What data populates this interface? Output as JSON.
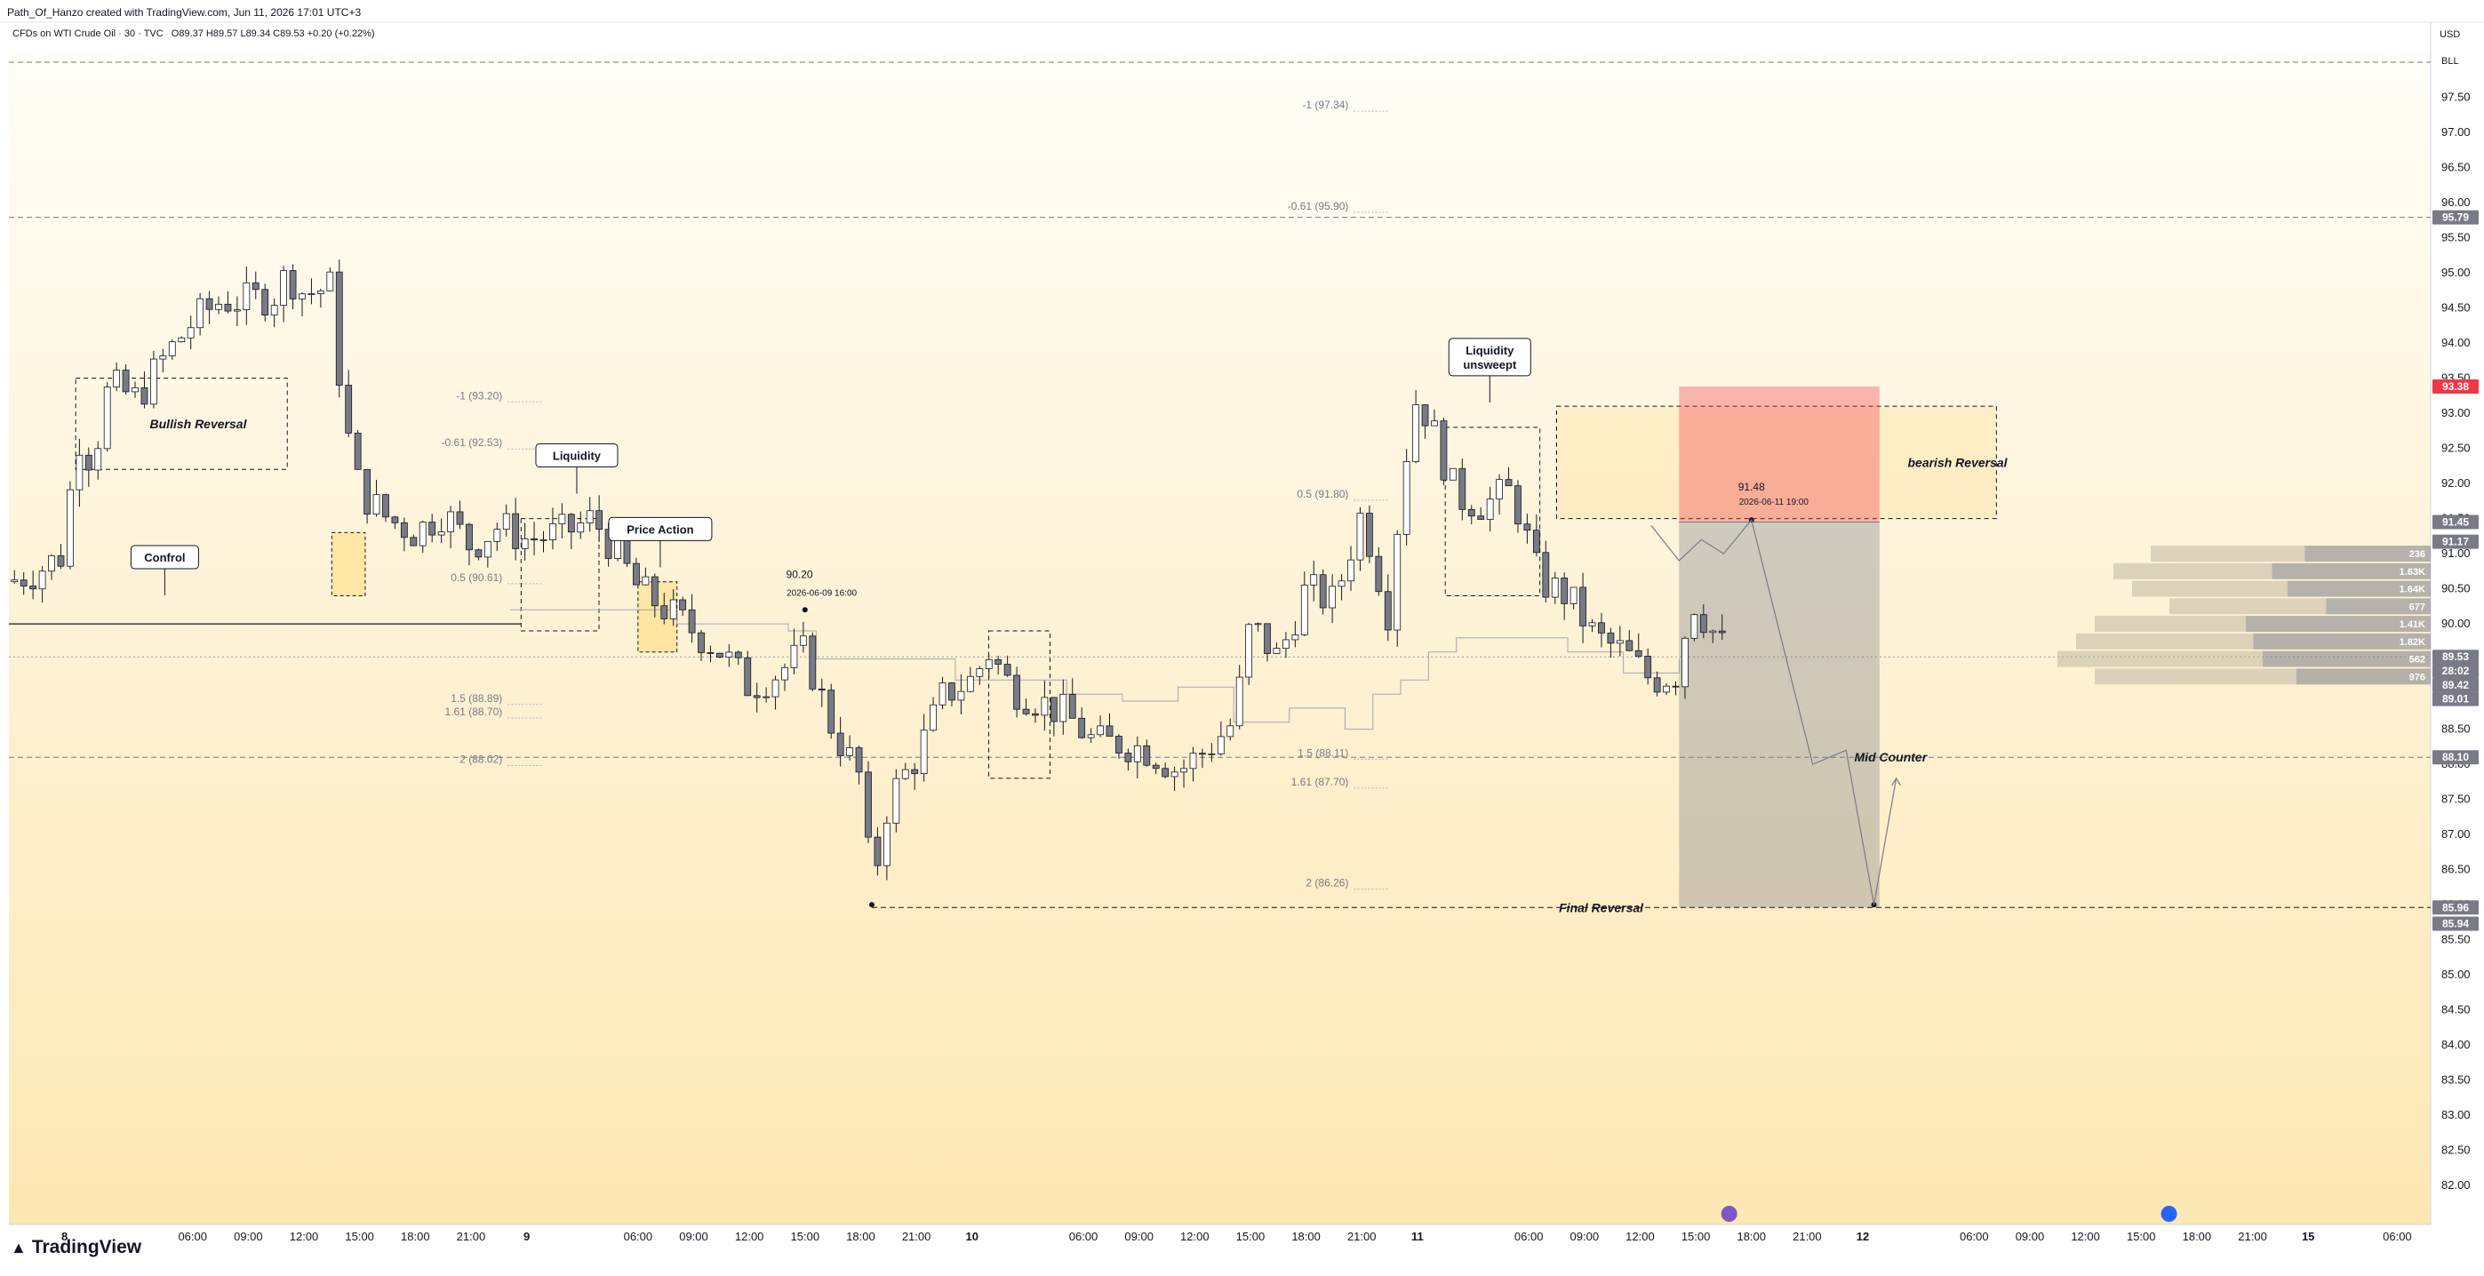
{
  "header": {
    "created_by": "Path_Of_Hanzo created with TradingView.com, Jun 11, 2026 17:01 UTC+3",
    "symbol": "CFDs on WTI Crude Oil · 30 · TVC",
    "ohlc": "O89.37 H89.57 L89.34 C89.53 +0.20 (+0.22%)",
    "currency": "USD",
    "unit": "BLL"
  },
  "brand": "TradingView",
  "chart_data": {
    "type": "candlestick",
    "symbol": "CFDs on WTI Crude Oil",
    "interval": "30",
    "source": "TVC",
    "ylim": [
      81.8,
      98.0
    ],
    "y_ticks": [
      97.5,
      97.0,
      96.5,
      96.0,
      95.5,
      95.0,
      94.5,
      94.0,
      93.5,
      93.0,
      92.5,
      92.0,
      91.5,
      91.0,
      90.5,
      90.0,
      89.5,
      89.0,
      88.5,
      88.0,
      87.5,
      87.0,
      86.5,
      86.0,
      85.5,
      85.0,
      84.5,
      84.0,
      83.5,
      83.0,
      82.5,
      82.0
    ],
    "x_ticks": [
      {
        "t": 1.0,
        "label": "8"
      },
      {
        "t": 3.3,
        "label": "06:00"
      },
      {
        "t": 4.3,
        "label": "09:00"
      },
      {
        "t": 5.3,
        "label": "12:00"
      },
      {
        "t": 6.3,
        "label": "15:00"
      },
      {
        "t": 7.3,
        "label": "18:00"
      },
      {
        "t": 8.3,
        "label": "21:00"
      },
      {
        "t": 9.3,
        "label": "9"
      },
      {
        "t": 11.3,
        "label": "06:00"
      },
      {
        "t": 12.3,
        "label": "09:00"
      },
      {
        "t": 13.3,
        "label": "12:00"
      },
      {
        "t": 14.3,
        "label": "15:00"
      },
      {
        "t": 15.3,
        "label": "18:00"
      },
      {
        "t": 16.3,
        "label": "21:00"
      },
      {
        "t": 17.3,
        "label": "10"
      },
      {
        "t": 19.3,
        "label": "06:00"
      },
      {
        "t": 20.3,
        "label": "09:00"
      },
      {
        "t": 21.3,
        "label": "12:00"
      },
      {
        "t": 22.3,
        "label": "15:00"
      },
      {
        "t": 23.3,
        "label": "18:00"
      },
      {
        "t": 24.3,
        "label": "21:00"
      },
      {
        "t": 25.3,
        "label": "11"
      },
      {
        "t": 27.3,
        "label": "06:00"
      },
      {
        "t": 28.3,
        "label": "09:00"
      },
      {
        "t": 29.3,
        "label": "12:00"
      },
      {
        "t": 30.3,
        "label": "15:00"
      },
      {
        "t": 31.3,
        "label": "18:00"
      },
      {
        "t": 32.3,
        "label": "21:00"
      },
      {
        "t": 33.3,
        "label": "12"
      },
      {
        "t": 35.3,
        "label": "06:00"
      },
      {
        "t": 36.3,
        "label": "09:00"
      },
      {
        "t": 37.3,
        "label": "12:00"
      },
      {
        "t": 38.3,
        "label": "15:00"
      },
      {
        "t": 39.3,
        "label": "18:00"
      },
      {
        "t": 40.3,
        "label": "21:00"
      },
      {
        "t": 41.3,
        "label": "15"
      },
      {
        "t": 42.9,
        "label": "06:00"
      }
    ],
    "price_path": [
      [
        0.0,
        90.6
      ],
      [
        0.5,
        90.75
      ],
      [
        1.0,
        91.0
      ],
      [
        1.2,
        92.75
      ],
      [
        1.5,
        92.3
      ],
      [
        1.8,
        93.4
      ],
      [
        2.3,
        93.2
      ],
      [
        2.8,
        93.8
      ],
      [
        3.3,
        94.3
      ],
      [
        3.8,
        94.6
      ],
      [
        4.3,
        94.6
      ],
      [
        4.8,
        94.7
      ],
      [
        5.0,
        95.0
      ],
      [
        5.3,
        94.7
      ],
      [
        5.8,
        94.8
      ],
      [
        6.0,
        93.0
      ],
      [
        6.3,
        91.9
      ],
      [
        6.8,
        91.5
      ],
      [
        7.3,
        91.3
      ],
      [
        7.8,
        91.6
      ],
      [
        8.3,
        91.1
      ],
      [
        8.8,
        91.4
      ],
      [
        9.3,
        91.2
      ],
      [
        10.0,
        91.3
      ],
      [
        10.5,
        91.5
      ],
      [
        11.0,
        90.9
      ],
      [
        11.3,
        90.5
      ],
      [
        11.8,
        90.2
      ],
      [
        12.3,
        89.9
      ],
      [
        12.8,
        89.6
      ],
      [
        13.3,
        89.1
      ],
      [
        13.8,
        89.3
      ],
      [
        14.3,
        89.6
      ],
      [
        14.8,
        88.5
      ],
      [
        15.3,
        87.8
      ],
      [
        15.5,
        86.2
      ],
      [
        15.8,
        87.5
      ],
      [
        16.3,
        88.1
      ],
      [
        16.8,
        89.0
      ],
      [
        17.3,
        89.2
      ],
      [
        17.6,
        89.6
      ],
      [
        18.0,
        89.1
      ],
      [
        18.5,
        88.9
      ],
      [
        19.0,
        88.7
      ],
      [
        19.5,
        88.3
      ],
      [
        20.0,
        88.3
      ],
      [
        20.5,
        88.2
      ],
      [
        21.0,
        87.9
      ],
      [
        21.5,
        88.2
      ],
      [
        22.0,
        88.6
      ],
      [
        22.3,
        90.0
      ],
      [
        22.8,
        89.5
      ],
      [
        23.3,
        90.5
      ],
      [
        23.8,
        90.3
      ],
      [
        24.3,
        91.6
      ],
      [
        24.8,
        90.1
      ],
      [
        25.0,
        92.0
      ],
      [
        25.3,
        93.3
      ],
      [
        25.6,
        92.7
      ],
      [
        26.0,
        91.8
      ],
      [
        26.5,
        91.7
      ],
      [
        27.0,
        91.9
      ],
      [
        27.5,
        90.6
      ],
      [
        28.0,
        90.4
      ],
      [
        28.5,
        89.8
      ],
      [
        29.0,
        89.6
      ],
      [
        29.5,
        89.2
      ],
      [
        30.0,
        89.3
      ],
      [
        30.2,
        90.4
      ],
      [
        30.6,
        89.9
      ],
      [
        30.9,
        89.53
      ]
    ],
    "ghost_steps": [
      [
        9.0,
        90.2
      ],
      [
        11.8,
        90.2
      ],
      [
        12.0,
        90.0
      ],
      [
        14.0,
        89.9
      ],
      [
        14.5,
        89.5
      ],
      [
        17.0,
        89.2
      ],
      [
        18.5,
        89.2
      ],
      [
        19.0,
        89.0
      ],
      [
        20.0,
        88.9
      ],
      [
        21.0,
        89.1
      ],
      [
        22.0,
        88.6
      ],
      [
        23.0,
        88.8
      ],
      [
        24.0,
        88.5
      ],
      [
        24.5,
        89.0
      ],
      [
        25.0,
        89.2
      ],
      [
        25.5,
        89.6
      ],
      [
        26.0,
        89.8
      ],
      [
        27.5,
        89.8
      ],
      [
        28.0,
        89.6
      ],
      [
        29.0,
        89.3
      ],
      [
        30.0,
        89.5
      ]
    ],
    "future_path": [
      [
        29.5,
        91.4
      ],
      [
        30.0,
        90.9
      ],
      [
        30.4,
        91.2
      ],
      [
        30.8,
        91.0
      ],
      [
        31.3,
        91.48
      ],
      [
        32.4,
        88.0
      ],
      [
        33.0,
        88.2
      ],
      [
        33.5,
        86.0
      ],
      [
        33.9,
        87.8
      ]
    ],
    "fib_levels": [
      {
        "label": "-1 (93.20)",
        "price": 93.2,
        "t": 8.8
      },
      {
        "label": "-0.61 (92.53)",
        "price": 92.53,
        "t": 8.8
      },
      {
        "label": "0.5 (90.61)",
        "price": 90.61,
        "t": 8.8
      },
      {
        "label": "1.5 (88.89)",
        "price": 88.89,
        "t": 8.8
      },
      {
        "label": "1.61 (88.70)",
        "price": 88.7,
        "t": 8.8
      },
      {
        "label": "2 (88.02)",
        "price": 88.02,
        "t": 8.8
      },
      {
        "label": "-1 (97.34)",
        "price": 97.34,
        "t": 24.0
      },
      {
        "label": "-0.61 (95.90)",
        "price": 95.9,
        "t": 24.0
      },
      {
        "label": "0.5 (91.80)",
        "price": 91.8,
        "t": 24.0
      },
      {
        "label": "1.5 (88.11)",
        "price": 88.11,
        "t": 24.0
      },
      {
        "label": "1.61 (87.70)",
        "price": 87.7,
        "t": 24.0
      },
      {
        "label": "2 (86.26)",
        "price": 86.26,
        "t": 24.0
      }
    ],
    "h_lines": [
      {
        "price": 98.0,
        "style": "dashed"
      },
      {
        "price": 95.79,
        "style": "dashed"
      },
      {
        "price": 90.0,
        "style": "solid-short"
      },
      {
        "price": 89.53,
        "style": "dotted"
      },
      {
        "price": 88.1,
        "style": "dashed"
      }
    ],
    "zones": [
      {
        "name": "Bullish Reversal",
        "t0": 1.2,
        "t1": 5.0,
        "p_top": 93.5,
        "p_bot": 92.2
      },
      {
        "name": "bearish Reversal",
        "t0": 27.8,
        "t1": 35.7,
        "p_top": 93.1,
        "p_bot": 91.5
      },
      {
        "name": "liquidity-box",
        "t0": 9.2,
        "t1": 10.6,
        "p_top": 91.5,
        "p_bot": 89.9
      },
      {
        "name": "unsweept-box",
        "t0": 25.8,
        "t1": 27.5,
        "p_top": 92.8,
        "p_bot": 90.4
      },
      {
        "name": "mid-box",
        "t0": 17.6,
        "t1": 18.7,
        "p_top": 89.9,
        "p_bot": 87.8
      }
    ],
    "highlight_boxes": [
      {
        "t0": 5.8,
        "t1": 6.4,
        "p_top": 91.3,
        "p_bot": 90.4
      },
      {
        "t0": 11.3,
        "t1": 12.0,
        "p_top": 90.6,
        "p_bot": 89.6
      }
    ],
    "position": {
      "t0": 30.0,
      "t1": 33.6,
      "entry": 91.45,
      "stop": 93.38,
      "target": 85.96
    },
    "annotations": [
      {
        "text": "Bullish Reversal",
        "t": 3.4,
        "price": 92.85,
        "style": "italic"
      },
      {
        "text": "bearish Reversal",
        "t": 35.0,
        "price": 92.3,
        "style": "italic"
      },
      {
        "text": "Confrol",
        "t": 2.8,
        "price": 90.95,
        "style": "box"
      },
      {
        "text": "Liquidity",
        "t": 10.2,
        "price": 92.4,
        "style": "box"
      },
      {
        "text": "Price Action",
        "t": 11.7,
        "price": 91.35,
        "style": "box"
      },
      {
        "text": "Liquidity unsweept",
        "t": 26.6,
        "price": 93.8,
        "style": "box"
      },
      {
        "text": "Mid Counter",
        "t": 33.8,
        "price": 88.1,
        "style": "italic"
      },
      {
        "text": "Final Reversal",
        "t": 28.6,
        "price": 85.96,
        "style": "italic"
      },
      {
        "text": "90.20",
        "t": 14.2,
        "price": 90.65,
        "style": "plain"
      },
      {
        "text": "2026-06-09 16:00",
        "t": 14.6,
        "price": 90.4,
        "style": "small"
      },
      {
        "text": "91.48",
        "t": 31.3,
        "price": 91.9,
        "style": "plain"
      },
      {
        "text": "2026-06-11 19:00",
        "t": 31.7,
        "price": 91.7,
        "style": "small"
      }
    ],
    "volume_profile": [
      {
        "price": 91.0,
        "label": "236",
        "total": 0.75,
        "split": 0.45
      },
      {
        "price": 90.75,
        "label": "1.63K",
        "total": 0.85,
        "split": 0.5
      },
      {
        "price": 90.5,
        "label": "1.64K",
        "total": 0.8,
        "split": 0.48
      },
      {
        "price": 90.25,
        "label": "677",
        "total": 0.7,
        "split": 0.4
      },
      {
        "price": 90.0,
        "label": "1.41K",
        "total": 0.9,
        "split": 0.55
      },
      {
        "price": 89.75,
        "label": "1.82K",
        "total": 0.95,
        "split": 0.5
      },
      {
        "price": 89.5,
        "label": "562",
        "total": 1.0,
        "split": 0.45
      },
      {
        "price": 89.25,
        "label": "976",
        "total": 0.9,
        "split": 0.4
      }
    ],
    "price_tags": [
      {
        "label": "95.79",
        "price": 95.79,
        "color": "#787b86"
      },
      {
        "label": "93.38",
        "price": 93.38,
        "color": "#f23645"
      },
      {
        "label": "91.45",
        "price": 91.45,
        "color": "#787b86"
      },
      {
        "label": "91.17",
        "price": 91.17,
        "color": "#787b86"
      },
      {
        "label": "89.53",
        "price": 89.53,
        "color": "#787b86"
      },
      {
        "label": "28:02",
        "price": 89.33,
        "color": "#787b86"
      },
      {
        "label": "89.42",
        "price": 89.13,
        "color": "#787b86"
      },
      {
        "label": "89.01",
        "price": 88.93,
        "color": "#787b86"
      },
      {
        "label": "88.10",
        "price": 88.1,
        "color": "#787b86"
      },
      {
        "label": "85.96",
        "price": 85.96,
        "color": "#787b86"
      },
      {
        "label": "85.94",
        "price": 85.73,
        "color": "#787b86"
      }
    ],
    "colors": {
      "up": "#ffffff",
      "down": "#787b86",
      "wick": "#131722",
      "accent_red": "#f23645",
      "bg_top": "#fffdf7",
      "bg_bottom": "#fde7b3"
    }
  }
}
